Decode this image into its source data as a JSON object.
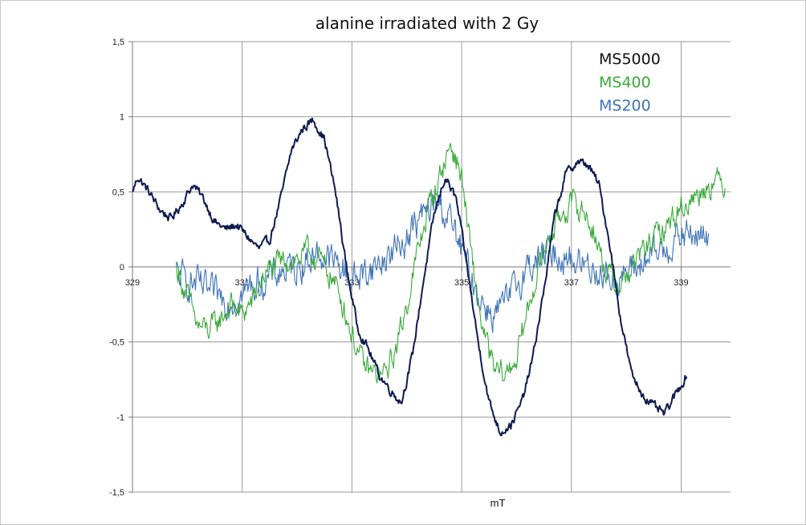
{
  "chart_data": {
    "type": "line",
    "title": "alanine irradiated with 2 Gy",
    "xlabel": "mT",
    "ylabel": "",
    "xlim": [
      329,
      339.9
    ],
    "ylim": [
      -1.5,
      1.5
    ],
    "x_ticks": [
      "329",
      "331",
      "333",
      "335",
      "337",
      "339"
    ],
    "y_ticks": [
      "1,5",
      "1",
      "0,5",
      "0",
      "-0,5",
      "-1",
      "-1,5"
    ],
    "grid": true,
    "legend_position": "top-right",
    "series": [
      {
        "name": "MS5000",
        "color": "#0d1a4f",
        "noise": 0.025,
        "points": [
          [
            329.0,
            0.5
          ],
          [
            329.1,
            0.6
          ],
          [
            329.3,
            0.5
          ],
          [
            329.5,
            0.38
          ],
          [
            329.7,
            0.32
          ],
          [
            329.9,
            0.42
          ],
          [
            330.1,
            0.55
          ],
          [
            330.3,
            0.45
          ],
          [
            330.5,
            0.3
          ],
          [
            330.7,
            0.25
          ],
          [
            330.9,
            0.28
          ],
          [
            331.1,
            0.2
          ],
          [
            331.3,
            0.12
          ],
          [
            331.5,
            0.18
          ],
          [
            331.7,
            0.45
          ],
          [
            331.9,
            0.78
          ],
          [
            332.1,
            0.92
          ],
          [
            332.3,
            0.98
          ],
          [
            332.5,
            0.85
          ],
          [
            332.7,
            0.5
          ],
          [
            332.9,
            0.0
          ],
          [
            333.1,
            -0.4
          ],
          [
            333.3,
            -0.55
          ],
          [
            333.5,
            -0.72
          ],
          [
            333.7,
            -0.82
          ],
          [
            333.9,
            -0.9
          ],
          [
            334.1,
            -0.6
          ],
          [
            334.3,
            -0.1
          ],
          [
            334.5,
            0.35
          ],
          [
            334.7,
            0.6
          ],
          [
            334.9,
            0.45
          ],
          [
            335.1,
            0.0
          ],
          [
            335.3,
            -0.5
          ],
          [
            335.5,
            -0.9
          ],
          [
            335.7,
            -1.1
          ],
          [
            335.9,
            -1.05
          ],
          [
            336.1,
            -0.9
          ],
          [
            336.3,
            -0.6
          ],
          [
            336.5,
            -0.15
          ],
          [
            336.7,
            0.35
          ],
          [
            336.9,
            0.62
          ],
          [
            337.1,
            0.7
          ],
          [
            337.3,
            0.68
          ],
          [
            337.5,
            0.55
          ],
          [
            337.7,
            0.15
          ],
          [
            337.9,
            -0.35
          ],
          [
            338.1,
            -0.72
          ],
          [
            338.3,
            -0.85
          ],
          [
            338.5,
            -0.93
          ],
          [
            338.7,
            -0.98
          ],
          [
            338.9,
            -0.85
          ],
          [
            339.1,
            -0.72
          ]
        ]
      },
      {
        "name": "MS400",
        "color": "#3aaa3a",
        "noise": 0.07,
        "points": [
          [
            329.8,
            0.0
          ],
          [
            330.0,
            -0.2
          ],
          [
            330.2,
            -0.4
          ],
          [
            330.4,
            -0.42
          ],
          [
            330.6,
            -0.35
          ],
          [
            330.8,
            -0.25
          ],
          [
            331.0,
            -0.32
          ],
          [
            331.2,
            -0.22
          ],
          [
            331.4,
            -0.05
          ],
          [
            331.6,
            0.0
          ],
          [
            331.8,
            0.05
          ],
          [
            332.0,
            0.05
          ],
          [
            332.2,
            0.1
          ],
          [
            332.4,
            0.05
          ],
          [
            332.6,
            -0.05
          ],
          [
            332.8,
            -0.2
          ],
          [
            333.0,
            -0.45
          ],
          [
            333.2,
            -0.65
          ],
          [
            333.4,
            -0.72
          ],
          [
            333.6,
            -0.72
          ],
          [
            333.8,
            -0.55
          ],
          [
            334.0,
            -0.25
          ],
          [
            334.2,
            0.1
          ],
          [
            334.4,
            0.4
          ],
          [
            334.6,
            0.6
          ],
          [
            334.8,
            0.82
          ],
          [
            335.0,
            0.6
          ],
          [
            335.2,
            0.0
          ],
          [
            335.4,
            -0.45
          ],
          [
            335.6,
            -0.7
          ],
          [
            335.8,
            -0.72
          ],
          [
            336.0,
            -0.6
          ],
          [
            336.2,
            -0.3
          ],
          [
            336.4,
            0.0
          ],
          [
            336.6,
            0.2
          ],
          [
            336.8,
            0.35
          ],
          [
            337.0,
            0.42
          ],
          [
            337.2,
            0.38
          ],
          [
            337.4,
            0.25
          ],
          [
            337.6,
            0.0
          ],
          [
            337.8,
            -0.12
          ],
          [
            338.0,
            -0.08
          ],
          [
            338.2,
            0.05
          ],
          [
            338.4,
            0.15
          ],
          [
            338.6,
            0.22
          ],
          [
            338.8,
            0.3
          ],
          [
            339.0,
            0.4
          ],
          [
            339.2,
            0.45
          ],
          [
            339.4,
            0.52
          ],
          [
            339.6,
            0.58
          ],
          [
            339.8,
            0.55
          ]
        ]
      },
      {
        "name": "MS200",
        "color": "#3e73b8",
        "noise": 0.09,
        "points": [
          [
            329.8,
            -0.05
          ],
          [
            330.0,
            -0.1
          ],
          [
            330.2,
            -0.12
          ],
          [
            330.4,
            -0.18
          ],
          [
            330.6,
            -0.2
          ],
          [
            330.8,
            -0.22
          ],
          [
            331.0,
            -0.18
          ],
          [
            331.2,
            -0.12
          ],
          [
            331.4,
            -0.1
          ],
          [
            331.6,
            -0.05
          ],
          [
            331.8,
            -0.02
          ],
          [
            332.0,
            0.0
          ],
          [
            332.2,
            0.05
          ],
          [
            332.4,
            0.08
          ],
          [
            332.6,
            0.05
          ],
          [
            332.8,
            0.0
          ],
          [
            333.0,
            -0.08
          ],
          [
            333.2,
            -0.05
          ],
          [
            333.4,
            0.0
          ],
          [
            333.6,
            0.05
          ],
          [
            333.8,
            0.12
          ],
          [
            334.0,
            0.2
          ],
          [
            334.2,
            0.3
          ],
          [
            334.4,
            0.38
          ],
          [
            334.6,
            0.42
          ],
          [
            334.8,
            0.3
          ],
          [
            335.0,
            0.1
          ],
          [
            335.2,
            -0.1
          ],
          [
            335.4,
            -0.25
          ],
          [
            335.6,
            -0.32
          ],
          [
            335.8,
            -0.25
          ],
          [
            336.0,
            -0.12
          ],
          [
            336.2,
            0.0
          ],
          [
            336.4,
            0.05
          ],
          [
            336.6,
            0.1
          ],
          [
            336.8,
            0.08
          ],
          [
            337.0,
            0.05
          ],
          [
            337.2,
            0.02
          ],
          [
            337.4,
            0.0
          ],
          [
            337.6,
            -0.05
          ],
          [
            337.8,
            -0.08
          ],
          [
            338.0,
            -0.05
          ],
          [
            338.2,
            0.0
          ],
          [
            338.4,
            0.05
          ],
          [
            338.6,
            0.1
          ],
          [
            338.8,
            0.15
          ],
          [
            339.0,
            0.2
          ],
          [
            339.2,
            0.22
          ],
          [
            339.5,
            0.18
          ]
        ]
      }
    ]
  }
}
